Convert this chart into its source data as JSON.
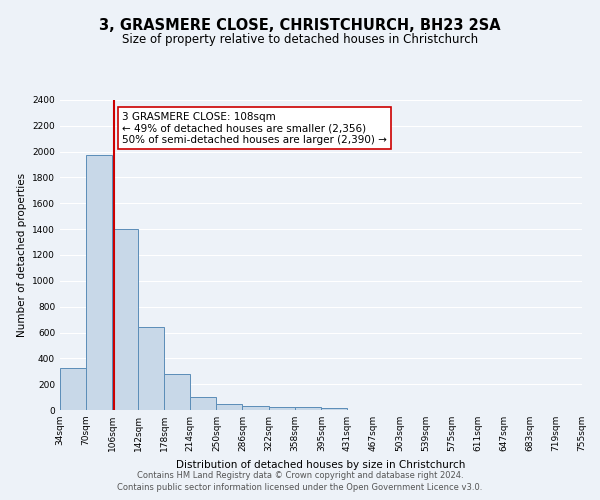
{
  "title": "3, GRASMERE CLOSE, CHRISTCHURCH, BH23 2SA",
  "subtitle": "Size of property relative to detached houses in Christchurch",
  "xlabel": "Distribution of detached houses by size in Christchurch",
  "ylabel": "Number of detached properties",
  "bin_edges": [
    34,
    70,
    106,
    142,
    178,
    214,
    250,
    286,
    322,
    358,
    395,
    431,
    467,
    503,
    539,
    575,
    611,
    647,
    683,
    719,
    755
  ],
  "bin_counts": [
    325,
    1975,
    1400,
    645,
    280,
    100,
    50,
    30,
    25,
    20,
    15,
    0,
    0,
    0,
    0,
    0,
    0,
    0,
    0,
    0
  ],
  "property_line_x": 108,
  "bar_color": "#c8d8e8",
  "bar_edge_color": "#5b8db8",
  "vline_color": "#cc0000",
  "annotation_text": "3 GRASMERE CLOSE: 108sqm\n← 49% of detached houses are smaller (2,356)\n50% of semi-detached houses are larger (2,390) →",
  "annotation_box_color": "#ffffff",
  "annotation_box_edge": "#cc0000",
  "ylim": [
    0,
    2400
  ],
  "yticks": [
    0,
    200,
    400,
    600,
    800,
    1000,
    1200,
    1400,
    1600,
    1800,
    2000,
    2200,
    2400
  ],
  "xtick_labels": [
    "34sqm",
    "70sqm",
    "106sqm",
    "142sqm",
    "178sqm",
    "214sqm",
    "250sqm",
    "286sqm",
    "322sqm",
    "358sqm",
    "395sqm",
    "431sqm",
    "467sqm",
    "503sqm",
    "539sqm",
    "575sqm",
    "611sqm",
    "647sqm",
    "683sqm",
    "719sqm",
    "755sqm"
  ],
  "footer1": "Contains HM Land Registry data © Crown copyright and database right 2024.",
  "footer2": "Contains public sector information licensed under the Open Government Licence v3.0.",
  "bg_color": "#edf2f8",
  "plot_bg_color": "#edf2f8",
  "grid_color": "#ffffff",
  "title_fontsize": 10.5,
  "subtitle_fontsize": 8.5,
  "axis_label_fontsize": 7.5,
  "tick_fontsize": 6.5,
  "footer_fontsize": 6.0,
  "annot_fontsize": 7.5
}
